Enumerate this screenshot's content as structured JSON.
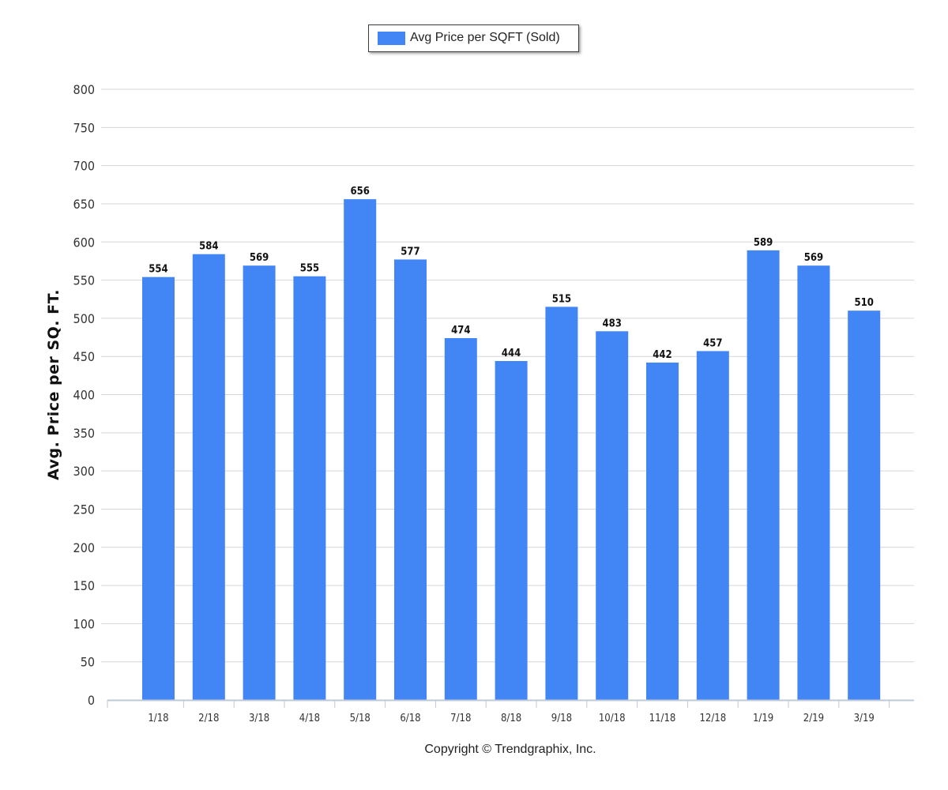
{
  "chart_data": {
    "type": "bar",
    "categories": [
      "1/18",
      "2/18",
      "3/18",
      "4/18",
      "5/18",
      "6/18",
      "7/18",
      "8/18",
      "9/18",
      "10/18",
      "11/18",
      "12/18",
      "1/19",
      "2/19",
      "3/19"
    ],
    "series": [
      {
        "name": "Avg Price per SQFT (Sold)",
        "values": [
          554,
          584,
          569,
          555,
          656,
          577,
          474,
          444,
          515,
          483,
          442,
          457,
          589,
          569,
          510
        ]
      }
    ],
    "data_labels": [
      "554",
      "584",
      "569",
      "555",
      "656",
      "577",
      "474",
      "444",
      "515",
      "483",
      "442",
      "457",
      "589",
      "569",
      "510"
    ],
    "ylabel": "Avg. Price per SQ. FT.",
    "ylim": [
      0,
      800
    ],
    "yticks": [
      0,
      50,
      100,
      150,
      200,
      250,
      300,
      350,
      400,
      450,
      500,
      550,
      600,
      650,
      700,
      750,
      800
    ],
    "grid": true,
    "legend_position": "top-center",
    "bar_color": "#4285f4"
  },
  "legend": {
    "label": "Avg Price per SQFT (Sold)"
  },
  "footer": {
    "copyright": "Copyright © Trendgraphix, Inc."
  }
}
